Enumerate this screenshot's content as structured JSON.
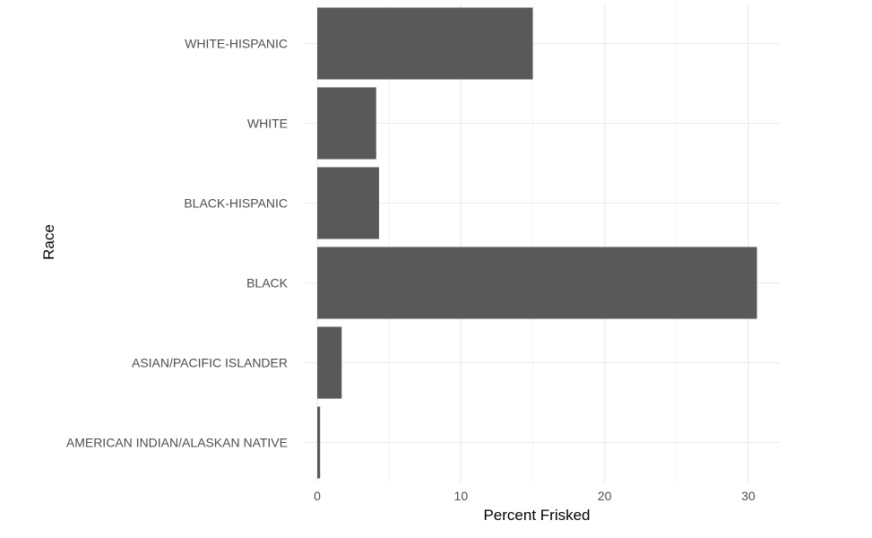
{
  "chart_data": {
    "type": "bar",
    "orientation": "horizontal",
    "categories": [
      "WHITE-HISPANIC",
      "WHITE",
      "BLACK-HISPANIC",
      "BLACK",
      "ASIAN/PACIFIC ISLANDER",
      "AMERICAN INDIAN/ALASKAN NATIVE"
    ],
    "values": [
      15.0,
      4.1,
      4.3,
      30.6,
      1.7,
      0.2
    ],
    "xlabel": "Percent Frisked",
    "ylabel": "Race",
    "xlim": [
      0,
      32
    ],
    "xticks": [
      0,
      10,
      20,
      30
    ],
    "grid": true,
    "colors": {
      "bar": "#595959",
      "grid_major": "#ebebeb",
      "grid_minor": "#f3f3f3"
    }
  }
}
